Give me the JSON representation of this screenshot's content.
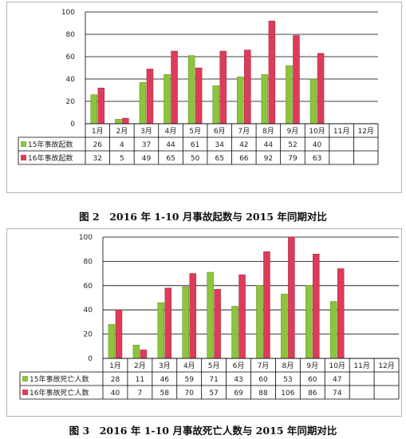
{
  "chart_data": [
    {
      "type": "bar",
      "title": "",
      "categories": [
        "1月",
        "2月",
        "3月",
        "4月",
        "5月",
        "6月",
        "7月",
        "8月",
        "9月",
        "10月",
        "11月",
        "12月"
      ],
      "series": [
        {
          "name": "15年事故起数",
          "color": "#8cc43c",
          "values": [
            26,
            4,
            37,
            44,
            61,
            34,
            42,
            44,
            52,
            40,
            null,
            null
          ]
        },
        {
          "name": "16年事故起数",
          "color": "#dc3c5a",
          "values": [
            32,
            5,
            49,
            65,
            50,
            65,
            66,
            92,
            79,
            63,
            null,
            null
          ]
        }
      ],
      "ylim": [
        0,
        100
      ],
      "yticks": [
        0,
        20,
        40,
        60,
        80,
        100
      ],
      "grid": true,
      "legend": "data-table"
    },
    {
      "type": "bar",
      "title": "",
      "categories": [
        "1月",
        "2月",
        "3月",
        "4月",
        "5月",
        "6月",
        "7月",
        "8月",
        "9月",
        "10月",
        "11月",
        "12月"
      ],
      "series": [
        {
          "name": "15年事故死亡人数",
          "color": "#8cc43c",
          "values": [
            28,
            11,
            46,
            59,
            71,
            43,
            60,
            53,
            60,
            47,
            null,
            null
          ]
        },
        {
          "name": "16年事故死亡人数",
          "color": "#dc3c5a",
          "values": [
            40,
            7,
            58,
            70,
            57,
            69,
            88,
            106,
            86,
            74,
            null,
            null
          ]
        }
      ],
      "ylim": [
        0,
        100
      ],
      "yticks": [
        0,
        20,
        40,
        60,
        80,
        100
      ],
      "grid": true,
      "legend": "data-table"
    }
  ],
  "captions": [
    "图 2　2016 年 1-10 月事故起数与 2015 年同期对比",
    "图 3　2016 年 1-10 月事故死亡人数与 2015 年同期对比"
  ]
}
